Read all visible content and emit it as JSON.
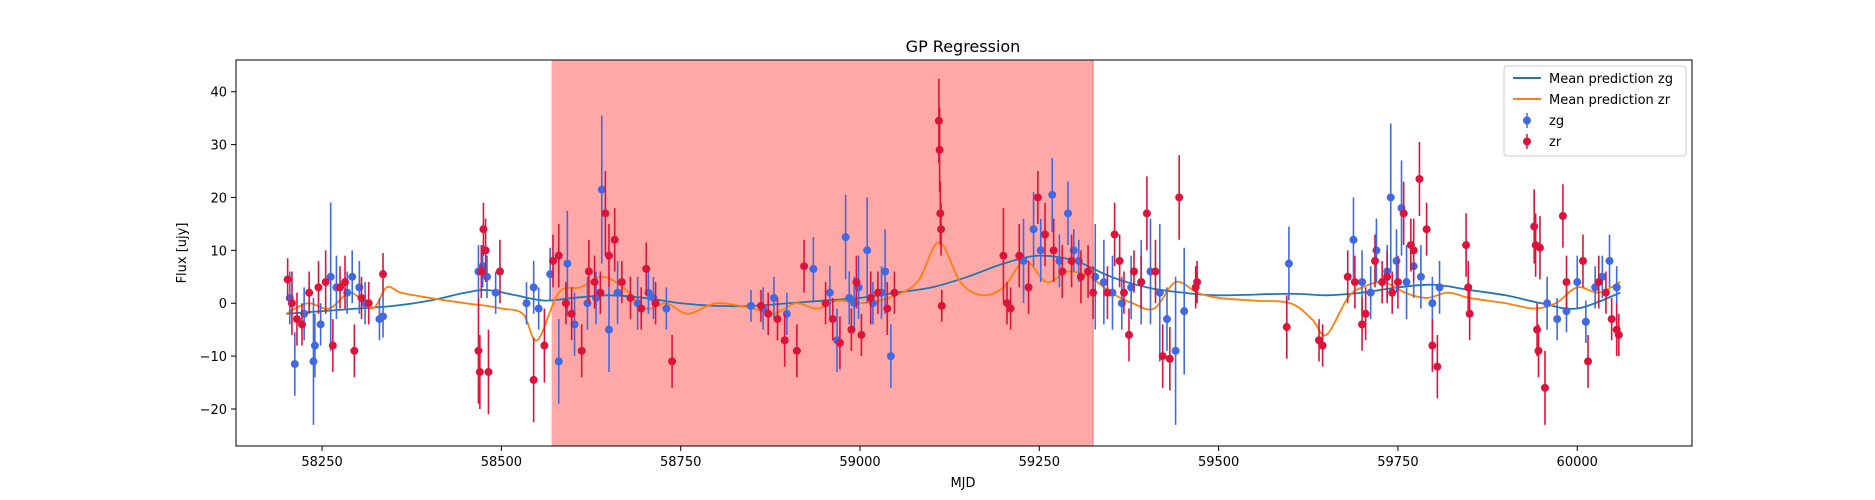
{
  "chart_data": {
    "type": "scatter",
    "title": "GP Regression",
    "xlabel": "MJD",
    "ylabel": "Flux [ujy]",
    "xlim": [
      58130,
      60160
    ],
    "ylim": [
      -27,
      46
    ],
    "xticks": [
      58250,
      58500,
      58750,
      59000,
      59250,
      59500,
      59750,
      60000
    ],
    "yticks": [
      -20,
      -10,
      0,
      10,
      20,
      30,
      40
    ],
    "grid": false,
    "legend_position": "top-right",
    "highlight_region": {
      "x": [
        58570,
        59325
      ],
      "color": "#ff9999"
    },
    "colors": {
      "zg_line": "#1f77b4",
      "zr_line": "#ff7f0e",
      "zg_points": "#4169e1",
      "zr_points": "#dc143c",
      "region": "#ff9999"
    },
    "lines": [
      {
        "name": "Mean prediction zg",
        "x": [
          58200,
          58250,
          58300,
          58350,
          58400,
          58450,
          58480,
          58520,
          58560,
          58600,
          58650,
          58700,
          58750,
          58800,
          58850,
          58900,
          58950,
          59000,
          59050,
          59100,
          59150,
          59200,
          59250,
          59300,
          59350,
          59400,
          59450,
          59500,
          59600,
          59650,
          59700,
          59750,
          59800,
          59850,
          59900,
          59950,
          60000,
          60060
        ],
        "y": [
          -2,
          -1.5,
          -1,
          -0.5,
          0.5,
          2,
          2.5,
          1.5,
          0.5,
          1,
          1.5,
          1,
          0,
          -0.5,
          -0.5,
          0,
          0.5,
          1,
          2,
          3,
          5,
          7.5,
          9,
          8,
          5,
          3,
          2,
          1.5,
          1.8,
          1.5,
          2,
          3,
          3.5,
          2.5,
          1.5,
          0,
          -1,
          2
        ]
      },
      {
        "name": "Mean prediction zr",
        "x": [
          58200,
          58230,
          58260,
          58290,
          58320,
          58340,
          58360,
          58400,
          58450,
          58480,
          58500,
          58530,
          58550,
          58580,
          58610,
          58640,
          58670,
          58700,
          58730,
          58760,
          58800,
          58850,
          58880,
          58910,
          58940,
          58970,
          59000,
          59040,
          59080,
          59110,
          59140,
          59170,
          59200,
          59230,
          59260,
          59290,
          59320,
          59350,
          59380,
          59410,
          59440,
          59470,
          59500,
          59550,
          59600,
          59630,
          59650,
          59680,
          59700,
          59730,
          59760,
          59790,
          59820,
          59850,
          59900,
          59940,
          59970,
          60000,
          60030,
          60060
        ],
        "y": [
          -2,
          0,
          -1,
          2,
          -1,
          3,
          2,
          1,
          0,
          -0.5,
          -1,
          -2,
          -7,
          2,
          3,
          5,
          3,
          -1,
          0,
          -2,
          0,
          -1,
          -2,
          0,
          -1,
          0.5,
          0,
          1,
          4,
          11.5,
          4,
          1.5,
          3,
          8,
          4,
          6,
          5,
          2,
          0,
          -1,
          4,
          2,
          1,
          0.5,
          0,
          -3,
          -6,
          1,
          3,
          4,
          2,
          1,
          2,
          1,
          0,
          -1,
          0,
          3,
          2,
          4
        ]
      }
    ],
    "series": [
      {
        "name": "zg",
        "x": [
          58205,
          58212,
          58225,
          58238,
          58240,
          58248,
          58262,
          58270,
          58285,
          58292,
          58302,
          58310,
          58330,
          58335,
          58468,
          58474,
          58480,
          58492,
          58535,
          58545,
          58552,
          58568,
          58580,
          58592,
          58602,
          58620,
          58632,
          58640,
          58650,
          58662,
          58690,
          58705,
          58712,
          58730,
          58848,
          58865,
          58880,
          58898,
          58935,
          58958,
          58968,
          58980,
          58985,
          58992,
          58998,
          59010,
          59018,
          59030,
          59035,
          59043,
          59228,
          59242,
          59252,
          59268,
          59278,
          59290,
          59298,
          59305,
          59328,
          59340,
          59352,
          59365,
          59378,
          59392,
          59405,
          59418,
          59428,
          59440,
          59452,
          59598,
          59688,
          59700,
          59712,
          59720,
          59735,
          59740,
          59748,
          59755,
          59762,
          59772,
          59782,
          59798,
          59808,
          59958,
          59972,
          59985,
          60000,
          60012,
          60025,
          60035,
          60045,
          60055
        ],
        "y": [
          1,
          -11.5,
          -2,
          -11,
          -8,
          -4,
          5,
          3,
          2,
          5,
          3,
          0,
          -3,
          -2.5,
          6,
          7,
          5,
          2,
          0,
          3,
          -1,
          5.5,
          -11,
          7.5,
          -4,
          0,
          1,
          21.5,
          -5,
          2,
          0,
          2,
          1,
          -1,
          -0.5,
          -1,
          1,
          -2,
          6.5,
          2,
          -7,
          12.5,
          1,
          0,
          3,
          10,
          0,
          2,
          6,
          -10,
          8,
          14,
          10,
          20.5,
          8,
          17,
          10,
          8,
          5,
          4,
          2,
          0,
          3,
          4,
          6,
          2,
          -3,
          -9,
          -1.5,
          7.5,
          12,
          4,
          2,
          10,
          6,
          20,
          8,
          18,
          4,
          7,
          5,
          0,
          3,
          0,
          -3,
          -1.5,
          4,
          -3.5,
          3,
          5,
          8,
          3
        ],
        "yerr": [
          5,
          6,
          5,
          12,
          6,
          4,
          14,
          6,
          4,
          5,
          5,
          4,
          4,
          4,
          5,
          4,
          4,
          4,
          4,
          5,
          4,
          5,
          8,
          10,
          6,
          5,
          5,
          14,
          8,
          6,
          5,
          4,
          4,
          4,
          3,
          4,
          4,
          4,
          6,
          5,
          6,
          8,
          5,
          5,
          6,
          10,
          4,
          5,
          8,
          6,
          8,
          7,
          6,
          7,
          5,
          6,
          4,
          4,
          10,
          8,
          7,
          5,
          6,
          8,
          10,
          13,
          6,
          14,
          12,
          7,
          8,
          6,
          5,
          6,
          5,
          14,
          6,
          9,
          7,
          6,
          6,
          5,
          5,
          5,
          4,
          4,
          5,
          4,
          4,
          4,
          5,
          4
        ]
      },
      {
        "name": "zr",
        "x": [
          58202,
          58208,
          58215,
          58222,
          58232,
          58245,
          58255,
          58265,
          58275,
          58282,
          58295,
          58305,
          58315,
          58335,
          58468,
          58470,
          58472,
          58475,
          58478,
          58482,
          58498,
          58545,
          58560,
          58572,
          58580,
          58590,
          58598,
          58612,
          58622,
          58630,
          58638,
          58645,
          58650,
          58658,
          58668,
          58680,
          58695,
          58702,
          58715,
          58738,
          58862,
          58872,
          58885,
          58895,
          58912,
          58922,
          58952,
          58962,
          58972,
          58988,
          58995,
          59002,
          59015,
          59025,
          59038,
          59048,
          59110,
          59111,
          59112,
          59113,
          59114,
          59200,
          59205,
          59210,
          59222,
          59235,
          59248,
          59258,
          59270,
          59282,
          59295,
          59308,
          59318,
          59325,
          59345,
          59355,
          59362,
          59368,
          59375,
          59382,
          59392,
          59400,
          59412,
          59422,
          59432,
          59445,
          59468,
          59470,
          59595,
          59640,
          59645,
          59680,
          59690,
          59700,
          59705,
          59718,
          59728,
          59735,
          59742,
          59750,
          59758,
          59768,
          59772,
          59780,
          59790,
          59798,
          59805,
          59845,
          59848,
          59850,
          59940,
          59942,
          59944,
          59946,
          59948,
          59955,
          59980,
          59985,
          60008,
          60015,
          60030,
          60040,
          60048,
          60055,
          60058
        ],
        "y": [
          4.5,
          0,
          -3,
          -4,
          2,
          3,
          4,
          -8,
          3,
          4,
          -9,
          1,
          0,
          5.5,
          -9,
          -13,
          6,
          14,
          10,
          -13,
          6,
          -14.5,
          -8,
          8,
          9,
          0,
          -2,
          -9,
          6,
          4,
          2,
          17,
          9,
          12,
          4,
          1,
          -1,
          6.5,
          0,
          -11,
          -0.5,
          -2,
          -3,
          -7,
          -9,
          7,
          0,
          -3,
          -7.5,
          -5,
          4,
          -6,
          1,
          2,
          -1,
          2,
          34.5,
          29,
          17,
          14,
          -0.5,
          9,
          0,
          -1,
          9,
          3,
          20,
          13,
          10,
          6,
          8,
          5,
          6,
          2,
          2,
          13,
          8,
          2,
          -6,
          6,
          4,
          17,
          6,
          -10,
          -10.5,
          20,
          3,
          4,
          -4.5,
          -7,
          -8,
          5,
          4,
          -4,
          -2,
          8,
          4,
          5,
          2,
          4,
          17,
          11,
          10,
          23.5,
          14,
          -8,
          -12,
          11,
          3,
          -2,
          14.5,
          11,
          -5,
          -9,
          10.5,
          -16,
          16.5,
          4,
          8,
          -11,
          4,
          2,
          -3,
          -5,
          -6
        ],
        "yerr": [
          4,
          6,
          5,
          4,
          4,
          5,
          6,
          5,
          4,
          5,
          5,
          4,
          4,
          4,
          10,
          7,
          5,
          5,
          6,
          8,
          6,
          8,
          7,
          5,
          6,
          4,
          5,
          5,
          6,
          5,
          4,
          8,
          6,
          6,
          4,
          4,
          4,
          5,
          4,
          5,
          3,
          4,
          4,
          5,
          5,
          5,
          4,
          4,
          5,
          4,
          5,
          4,
          5,
          4,
          5,
          4,
          8,
          8,
          6,
          5,
          3,
          9,
          4,
          4,
          6,
          5,
          5,
          6,
          6,
          5,
          5,
          5,
          5,
          5,
          5,
          6,
          5,
          4,
          5,
          4,
          5,
          7,
          6,
          6,
          6,
          8,
          4,
          4,
          6,
          4,
          4,
          5,
          5,
          5,
          5,
          5,
          4,
          5,
          4,
          5,
          6,
          5,
          6,
          7,
          5,
          5,
          6,
          6,
          5,
          5,
          7,
          6,
          5,
          5,
          6,
          7,
          6,
          5,
          5,
          5,
          5,
          4,
          4,
          5,
          4
        ]
      }
    ]
  }
}
